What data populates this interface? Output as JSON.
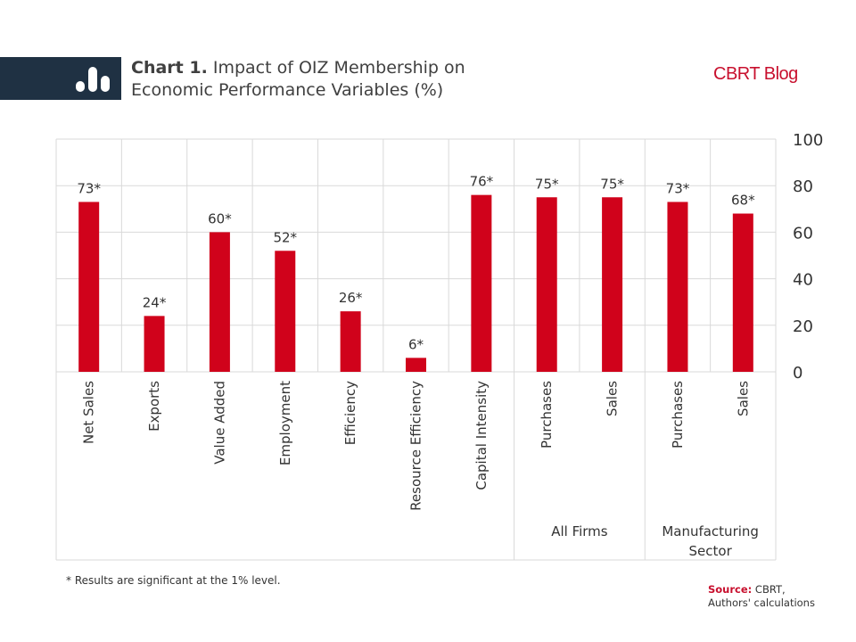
{
  "header": {
    "chart_number": "Chart 1.",
    "title_line1": "Impact of OIZ Membership on",
    "title_line2": "Economic Performance Variables (%)",
    "brand": "CBRT Blog",
    "logo_icon": "bar-chart-icon"
  },
  "chart_data": {
    "type": "bar",
    "categories": [
      "Net Sales",
      "Exports",
      "Value Added",
      "Employment",
      "Efficiency",
      "Resource Efficiency",
      "Capital Intensity",
      "Purchases",
      "Sales",
      "Purchases",
      "Sales"
    ],
    "values": [
      73,
      24,
      60,
      52,
      26,
      6,
      76,
      75,
      75,
      73,
      68
    ],
    "data_labels": [
      "73*",
      "24*",
      "60*",
      "52*",
      "26*",
      "6*",
      "76*",
      "75*",
      "75*",
      "73*",
      "68*"
    ],
    "groups": [
      {
        "label": "All Firms",
        "categories": [
          7,
          8
        ]
      },
      {
        "label": "Manufacturing Sector",
        "categories": [
          9,
          10
        ]
      }
    ],
    "y_ticks": [
      "0",
      "20",
      "40",
      "60",
      "80",
      "100"
    ],
    "ylim": [
      0,
      100
    ],
    "y_axis_side": "right",
    "grid": true,
    "bar_color": "#d0021b",
    "grid_color": "#d9d9d9"
  },
  "footer": {
    "footnote": "* Results are significant at the 1% level.",
    "source_label": "Source:",
    "source_text": "CBRT,",
    "source_line2": "Authors' calculations"
  }
}
